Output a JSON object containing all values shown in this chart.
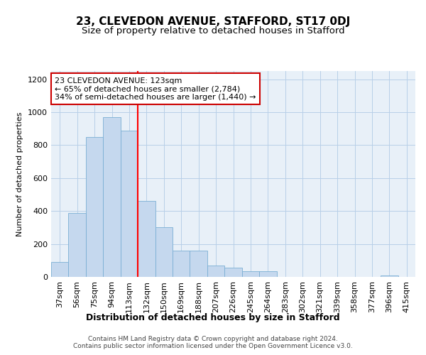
{
  "title": "23, CLEVEDON AVENUE, STAFFORD, ST17 0DJ",
  "subtitle": "Size of property relative to detached houses in Stafford",
  "xlabel": "Distribution of detached houses by size in Stafford",
  "ylabel": "Number of detached properties",
  "categories": [
    "37sqm",
    "56sqm",
    "75sqm",
    "94sqm",
    "113sqm",
    "132sqm",
    "150sqm",
    "169sqm",
    "188sqm",
    "207sqm",
    "226sqm",
    "245sqm",
    "264sqm",
    "283sqm",
    "302sqm",
    "321sqm",
    "339sqm",
    "358sqm",
    "377sqm",
    "396sqm",
    "415sqm"
  ],
  "values": [
    90,
    390,
    850,
    970,
    890,
    460,
    300,
    160,
    160,
    70,
    55,
    35,
    35,
    0,
    0,
    0,
    0,
    0,
    0,
    10,
    0
  ],
  "bar_color": "#c5d8ee",
  "bar_edge_color": "#7aafd4",
  "grid_color": "#b8cfe8",
  "bg_color": "#e8f0f8",
  "vline_color": "red",
  "annotation_text": "23 CLEVEDON AVENUE: 123sqm\n← 65% of detached houses are smaller (2,784)\n34% of semi-detached houses are larger (1,440) →",
  "annotation_box_color": "white",
  "annotation_box_edge": "#cc0000",
  "footer_text": "Contains HM Land Registry data © Crown copyright and database right 2024.\nContains public sector information licensed under the Open Government Licence v3.0.",
  "ylim_max": 1250,
  "title_fontsize": 11,
  "subtitle_fontsize": 9.5,
  "xlabel_fontsize": 9,
  "ylabel_fontsize": 8,
  "tick_fontsize": 8,
  "annotation_fontsize": 8,
  "footer_fontsize": 6.5
}
